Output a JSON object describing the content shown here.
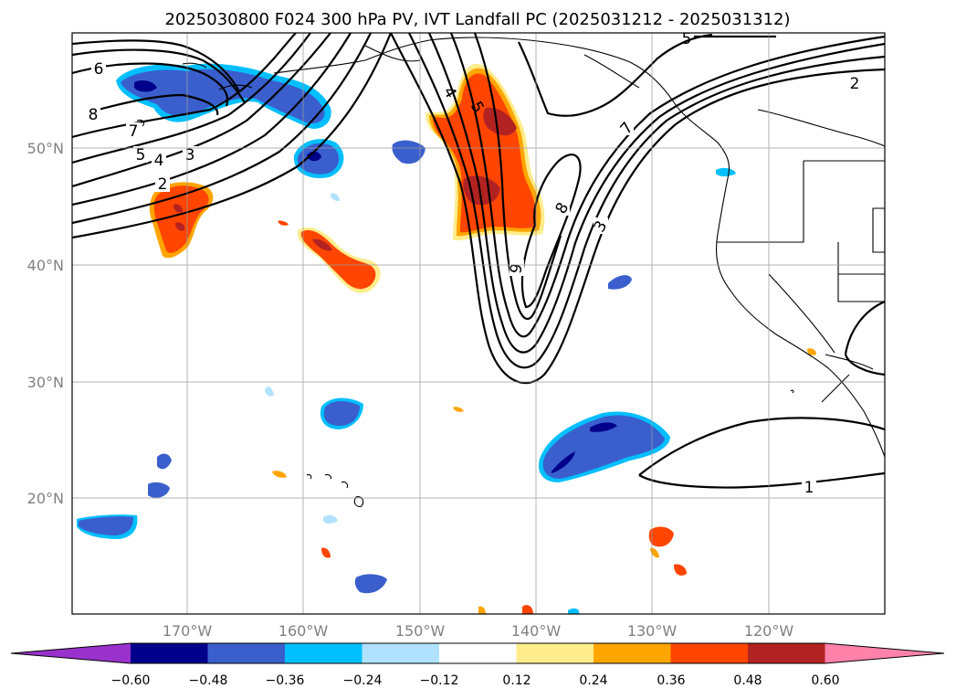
{
  "title": "2025030800 F024 300 hPa PV, IVT Landfall PC (2025031212 - 2025031312)",
  "map": {
    "lon_range": [
      -180,
      -110
    ],
    "lat_range": [
      10,
      60
    ],
    "lon_ticks": [
      "170°W",
      "160°W",
      "150°W",
      "140°W",
      "130°W",
      "120°W"
    ],
    "lat_ticks": [
      "50°N",
      "40°N",
      "30°N",
      "20°N"
    ],
    "gridlines": true,
    "contour_labels": [
      "6",
      "8",
      "7",
      "5",
      "4",
      "3",
      "2",
      "4",
      "5",
      "7",
      "8",
      "9",
      "3",
      "2",
      "5",
      "1"
    ]
  },
  "colorbar": {
    "tick_labels": [
      "−0.60",
      "−0.48",
      "−0.36",
      "−0.24",
      "−0.12",
      "0.12",
      "0.24",
      "0.36",
      "0.48",
      "0.60"
    ],
    "colors": [
      "#9932cc",
      "#00008b",
      "#3a5fcd",
      "#00bfff",
      "#b0e2ff",
      "#ffffff",
      "#ffec8b",
      "#ffa500",
      "#ff4500",
      "#b22222",
      "#ff82ab"
    ],
    "extend": "both"
  }
}
